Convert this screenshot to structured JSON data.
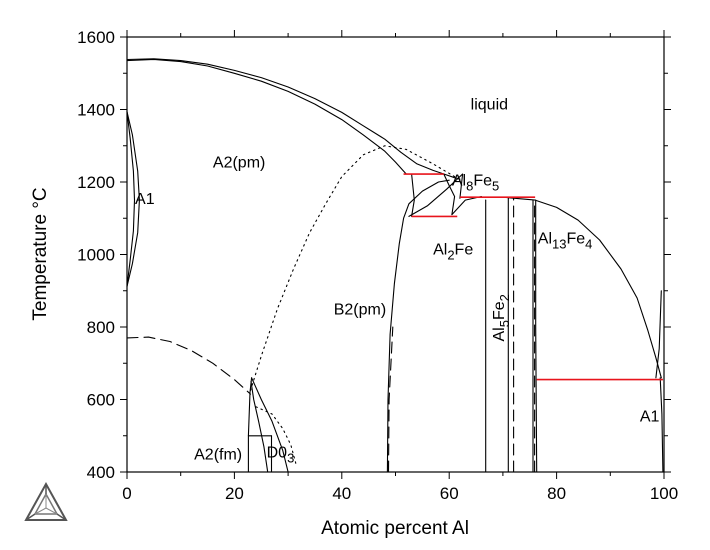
{
  "chart_data": {
    "type": "line",
    "xlabel": "Atomic percent Al",
    "ylabel": "Temperature °C",
    "xlim": [
      0,
      100
    ],
    "ylim": [
      400,
      1600
    ],
    "x_ticks": [
      0,
      20,
      40,
      60,
      80,
      100
    ],
    "y_ticks": [
      400,
      600,
      800,
      1000,
      1200,
      1400,
      1600
    ],
    "grid": false,
    "legend": "none",
    "line_color": "#000000",
    "invariant_color": "#e8141c",
    "phase_labels": [
      {
        "key": "liquid",
        "text": "liquid",
        "x": 64.0,
        "y": 1400
      },
      {
        "key": "a2pm",
        "text": "A2(pm)",
        "x": 16.0,
        "y": 1240
      },
      {
        "key": "a1left",
        "text": "A1",
        "x": 1.5,
        "y": 1140
      },
      {
        "key": "b2pm",
        "text": "B2(pm)",
        "x": 38.5,
        "y": 835
      },
      {
        "key": "a2fm",
        "text": "A2(fm)",
        "x": 12.5,
        "y": 435
      },
      {
        "key": "a1right",
        "text": "A1",
        "x": 95.5,
        "y": 540
      }
    ],
    "compound_labels": [
      {
        "key": "al8fe5",
        "base": "Al",
        "sub1": "8",
        "mid": "Fe",
        "sub2": "5",
        "x": 60.5,
        "y": 1190,
        "rotate": false
      },
      {
        "key": "al2fe",
        "base": "Al",
        "sub1": "2",
        "mid": "Fe",
        "sub2": "",
        "x": 57.0,
        "y": 1000,
        "rotate": false
      },
      {
        "key": "al13fe4",
        "base": "Al",
        "sub1": "13",
        "mid": "Fe",
        "sub2": "4",
        "x": 76.5,
        "y": 1030,
        "rotate": false
      },
      {
        "key": "al5fe2",
        "base": "Al",
        "sub1": "5",
        "mid": "Fe",
        "sub2": "2",
        "x": 70.2,
        "y": 760,
        "rotate": true
      },
      {
        "key": "d03",
        "base": "D0",
        "sub1": "3",
        "mid": "",
        "sub2": "",
        "x": 26.0,
        "y": 440,
        "rotate": false
      }
    ],
    "series": [
      {
        "key": "liquidus_left",
        "style": "solid",
        "points": [
          [
            0,
            1538
          ],
          [
            5,
            1540
          ],
          [
            10,
            1535
          ],
          [
            15,
            1525
          ],
          [
            20,
            1508
          ],
          [
            25,
            1488
          ],
          [
            30,
            1462
          ],
          [
            35,
            1430
          ],
          [
            40,
            1392
          ],
          [
            44,
            1355
          ],
          [
            48,
            1318
          ],
          [
            51,
            1282
          ],
          [
            54,
            1250
          ],
          [
            57,
            1232
          ],
          [
            59,
            1222
          ],
          [
            61,
            1212
          ],
          [
            62,
            1208
          ]
        ]
      },
      {
        "key": "solidus_a2",
        "style": "solid",
        "points": [
          [
            0,
            1535
          ],
          [
            5,
            1538
          ],
          [
            10,
            1532
          ],
          [
            15,
            1520
          ],
          [
            20,
            1500
          ],
          [
            25,
            1478
          ],
          [
            30,
            1450
          ],
          [
            35,
            1415
          ],
          [
            40,
            1372
          ],
          [
            44,
            1330
          ],
          [
            48,
            1285
          ],
          [
            50,
            1255
          ],
          [
            52,
            1222
          ]
        ]
      },
      {
        "key": "liquidus_right",
        "style": "solid",
        "points": [
          [
            70,
            1158
          ],
          [
            76,
            1150
          ],
          [
            80,
            1130
          ],
          [
            84,
            1095
          ],
          [
            88,
            1040
          ],
          [
            92,
            960
          ],
          [
            95,
            880
          ],
          [
            97,
            790
          ],
          [
            98.5,
            715
          ],
          [
            99.5,
            660
          ]
        ]
      },
      {
        "key": "solidus_right",
        "style": "solid",
        "points": [
          [
            98.5,
            660
          ],
          [
            99.1,
            740
          ],
          [
            99.5,
            900
          ]
        ]
      },
      {
        "key": "a1_left_outer",
        "style": "solid",
        "points": [
          [
            0,
            1394
          ],
          [
            1.0,
            1330
          ],
          [
            2.0,
            1230
          ],
          [
            2.3,
            1150
          ],
          [
            2.0,
            1060
          ],
          [
            1.0,
            975
          ],
          [
            0,
            912
          ]
        ]
      },
      {
        "key": "a1_left_inner",
        "style": "solid",
        "points": [
          [
            0,
            1394
          ],
          [
            0.6,
            1320
          ],
          [
            1.2,
            1230
          ],
          [
            1.4,
            1150
          ],
          [
            1.2,
            1065
          ],
          [
            0.6,
            985
          ],
          [
            0,
            912
          ]
        ]
      },
      {
        "key": "a2_b2_order",
        "style": "dotted",
        "points": [
          [
            23,
            625
          ],
          [
            25,
            720
          ],
          [
            28,
            850
          ],
          [
            31,
            960
          ],
          [
            34,
            1060
          ],
          [
            37,
            1140
          ],
          [
            40,
            1215
          ],
          [
            44,
            1275
          ],
          [
            48,
            1300
          ],
          [
            52,
            1290
          ],
          [
            57,
            1250
          ],
          [
            61,
            1215
          ]
        ]
      },
      {
        "key": "magnetic",
        "style": "dashed",
        "points": [
          [
            0,
            770
          ],
          [
            4,
            772
          ],
          [
            8,
            760
          ],
          [
            12,
            735
          ],
          [
            16,
            700
          ],
          [
            20,
            655
          ],
          [
            23,
            615
          ]
        ]
      },
      {
        "key": "d03_dotted",
        "style": "dotted",
        "points": [
          [
            24,
            580
          ],
          [
            27,
            560
          ],
          [
            29,
            520
          ],
          [
            30.5,
            475
          ],
          [
            31.5,
            420
          ]
        ]
      },
      {
        "key": "b2_al2fe_left",
        "style": "solid",
        "points": [
          [
            48.5,
            400
          ],
          [
            48.6,
            600
          ],
          [
            49,
            780
          ],
          [
            49.8,
            920
          ],
          [
            50.7,
            1030
          ],
          [
            51.5,
            1100
          ],
          [
            52.5,
            1140
          ],
          [
            55,
            1175
          ],
          [
            58,
            1200
          ],
          [
            60,
            1205
          ]
        ]
      },
      {
        "key": "b2_al2fe_dashed",
        "style": "dashed",
        "points": [
          [
            48.7,
            400
          ],
          [
            48.8,
            600
          ],
          [
            49.5,
            800
          ]
        ]
      },
      {
        "key": "al2fe_left",
        "style": "solid",
        "points": [
          [
            53,
            1105
          ],
          [
            53.5,
            1150
          ],
          [
            53,
            1222
          ]
        ]
      },
      {
        "key": "al8fe5_low",
        "style": "solid",
        "points": [
          [
            52.5,
            1105
          ],
          [
            56,
            1135
          ],
          [
            59.5,
            1180
          ],
          [
            62.5,
            1222
          ],
          [
            62,
            1155
          ]
        ]
      },
      {
        "key": "al8fe5_right",
        "style": "solid",
        "points": [
          [
            59,
            1222
          ],
          [
            60,
            1190
          ],
          [
            61,
            1160
          ],
          [
            60.5,
            1110
          ]
        ]
      },
      {
        "key": "al2fe_liquid",
        "style": "solid",
        "points": [
          [
            60.5,
            1110
          ],
          [
            63,
            1150
          ],
          [
            66,
            1160
          ]
        ]
      },
      {
        "key": "al2fe_right",
        "style": "solid",
        "points": [
          [
            66.8,
            400
          ],
          [
            66.8,
            1150
          ]
        ]
      },
      {
        "key": "al5fe2_left",
        "style": "solid",
        "points": [
          [
            71.0,
            400
          ],
          [
            71.0,
            1158
          ]
        ]
      },
      {
        "key": "al5fe2_right",
        "style": "dashed",
        "points": [
          [
            72.0,
            400
          ],
          [
            72.0,
            1158
          ]
        ]
      },
      {
        "key": "al13fe4_left",
        "style": "solid",
        "points": [
          [
            75.6,
            400
          ],
          [
            75.6,
            1150
          ]
        ]
      },
      {
        "key": "al13fe4_right",
        "style": "solid",
        "points": [
          [
            76.3,
            400
          ],
          [
            76.1,
            800
          ],
          [
            76.1,
            1150
          ]
        ]
      },
      {
        "key": "al13fe4_mid",
        "style": "dashed",
        "points": [
          [
            75.9,
            400
          ],
          [
            75.9,
            1150
          ]
        ]
      },
      {
        "key": "a1_right_solvus",
        "style": "solid",
        "points": [
          [
            99.3,
            660
          ],
          [
            99.6,
            560
          ],
          [
            99.8,
            400
          ]
        ]
      },
      {
        "key": "d03_left",
        "style": "solid",
        "points": [
          [
            22.6,
            400
          ],
          [
            22.6,
            500
          ],
          [
            22.9,
            620
          ],
          [
            23.2,
            660
          ]
        ]
      },
      {
        "key": "d03_a2_b2_1",
        "style": "solid",
        "points": [
          [
            23.2,
            660
          ],
          [
            25,
            600
          ],
          [
            27,
            540
          ],
          [
            29,
            460
          ],
          [
            30,
            400
          ]
        ]
      },
      {
        "key": "d03_a2_b2_2",
        "style": "solid",
        "points": [
          [
            23.1,
            650
          ],
          [
            23.6,
            600
          ],
          [
            24.5,
            540
          ],
          [
            25.5,
            470
          ],
          [
            26.2,
            400
          ]
        ]
      },
      {
        "key": "d03_inner_v",
        "style": "solid",
        "points": [
          [
            26.9,
            400
          ],
          [
            26.9,
            500
          ]
        ]
      },
      {
        "key": "d03_tie",
        "style": "solid",
        "points": [
          [
            22.6,
            500
          ],
          [
            26.9,
            500
          ]
        ]
      }
    ],
    "invariant_lines": [
      {
        "key": "inv_1222",
        "x1": 51.5,
        "x2": 59,
        "y": 1222
      },
      {
        "key": "inv_1105",
        "x1": 53,
        "x2": 61.5,
        "y": 1105
      },
      {
        "key": "inv_1158",
        "x1": 62,
        "x2": 76,
        "y": 1158
      },
      {
        "key": "inv_655",
        "x1": 76.3,
        "x2": 99.8,
        "y": 655
      }
    ]
  }
}
